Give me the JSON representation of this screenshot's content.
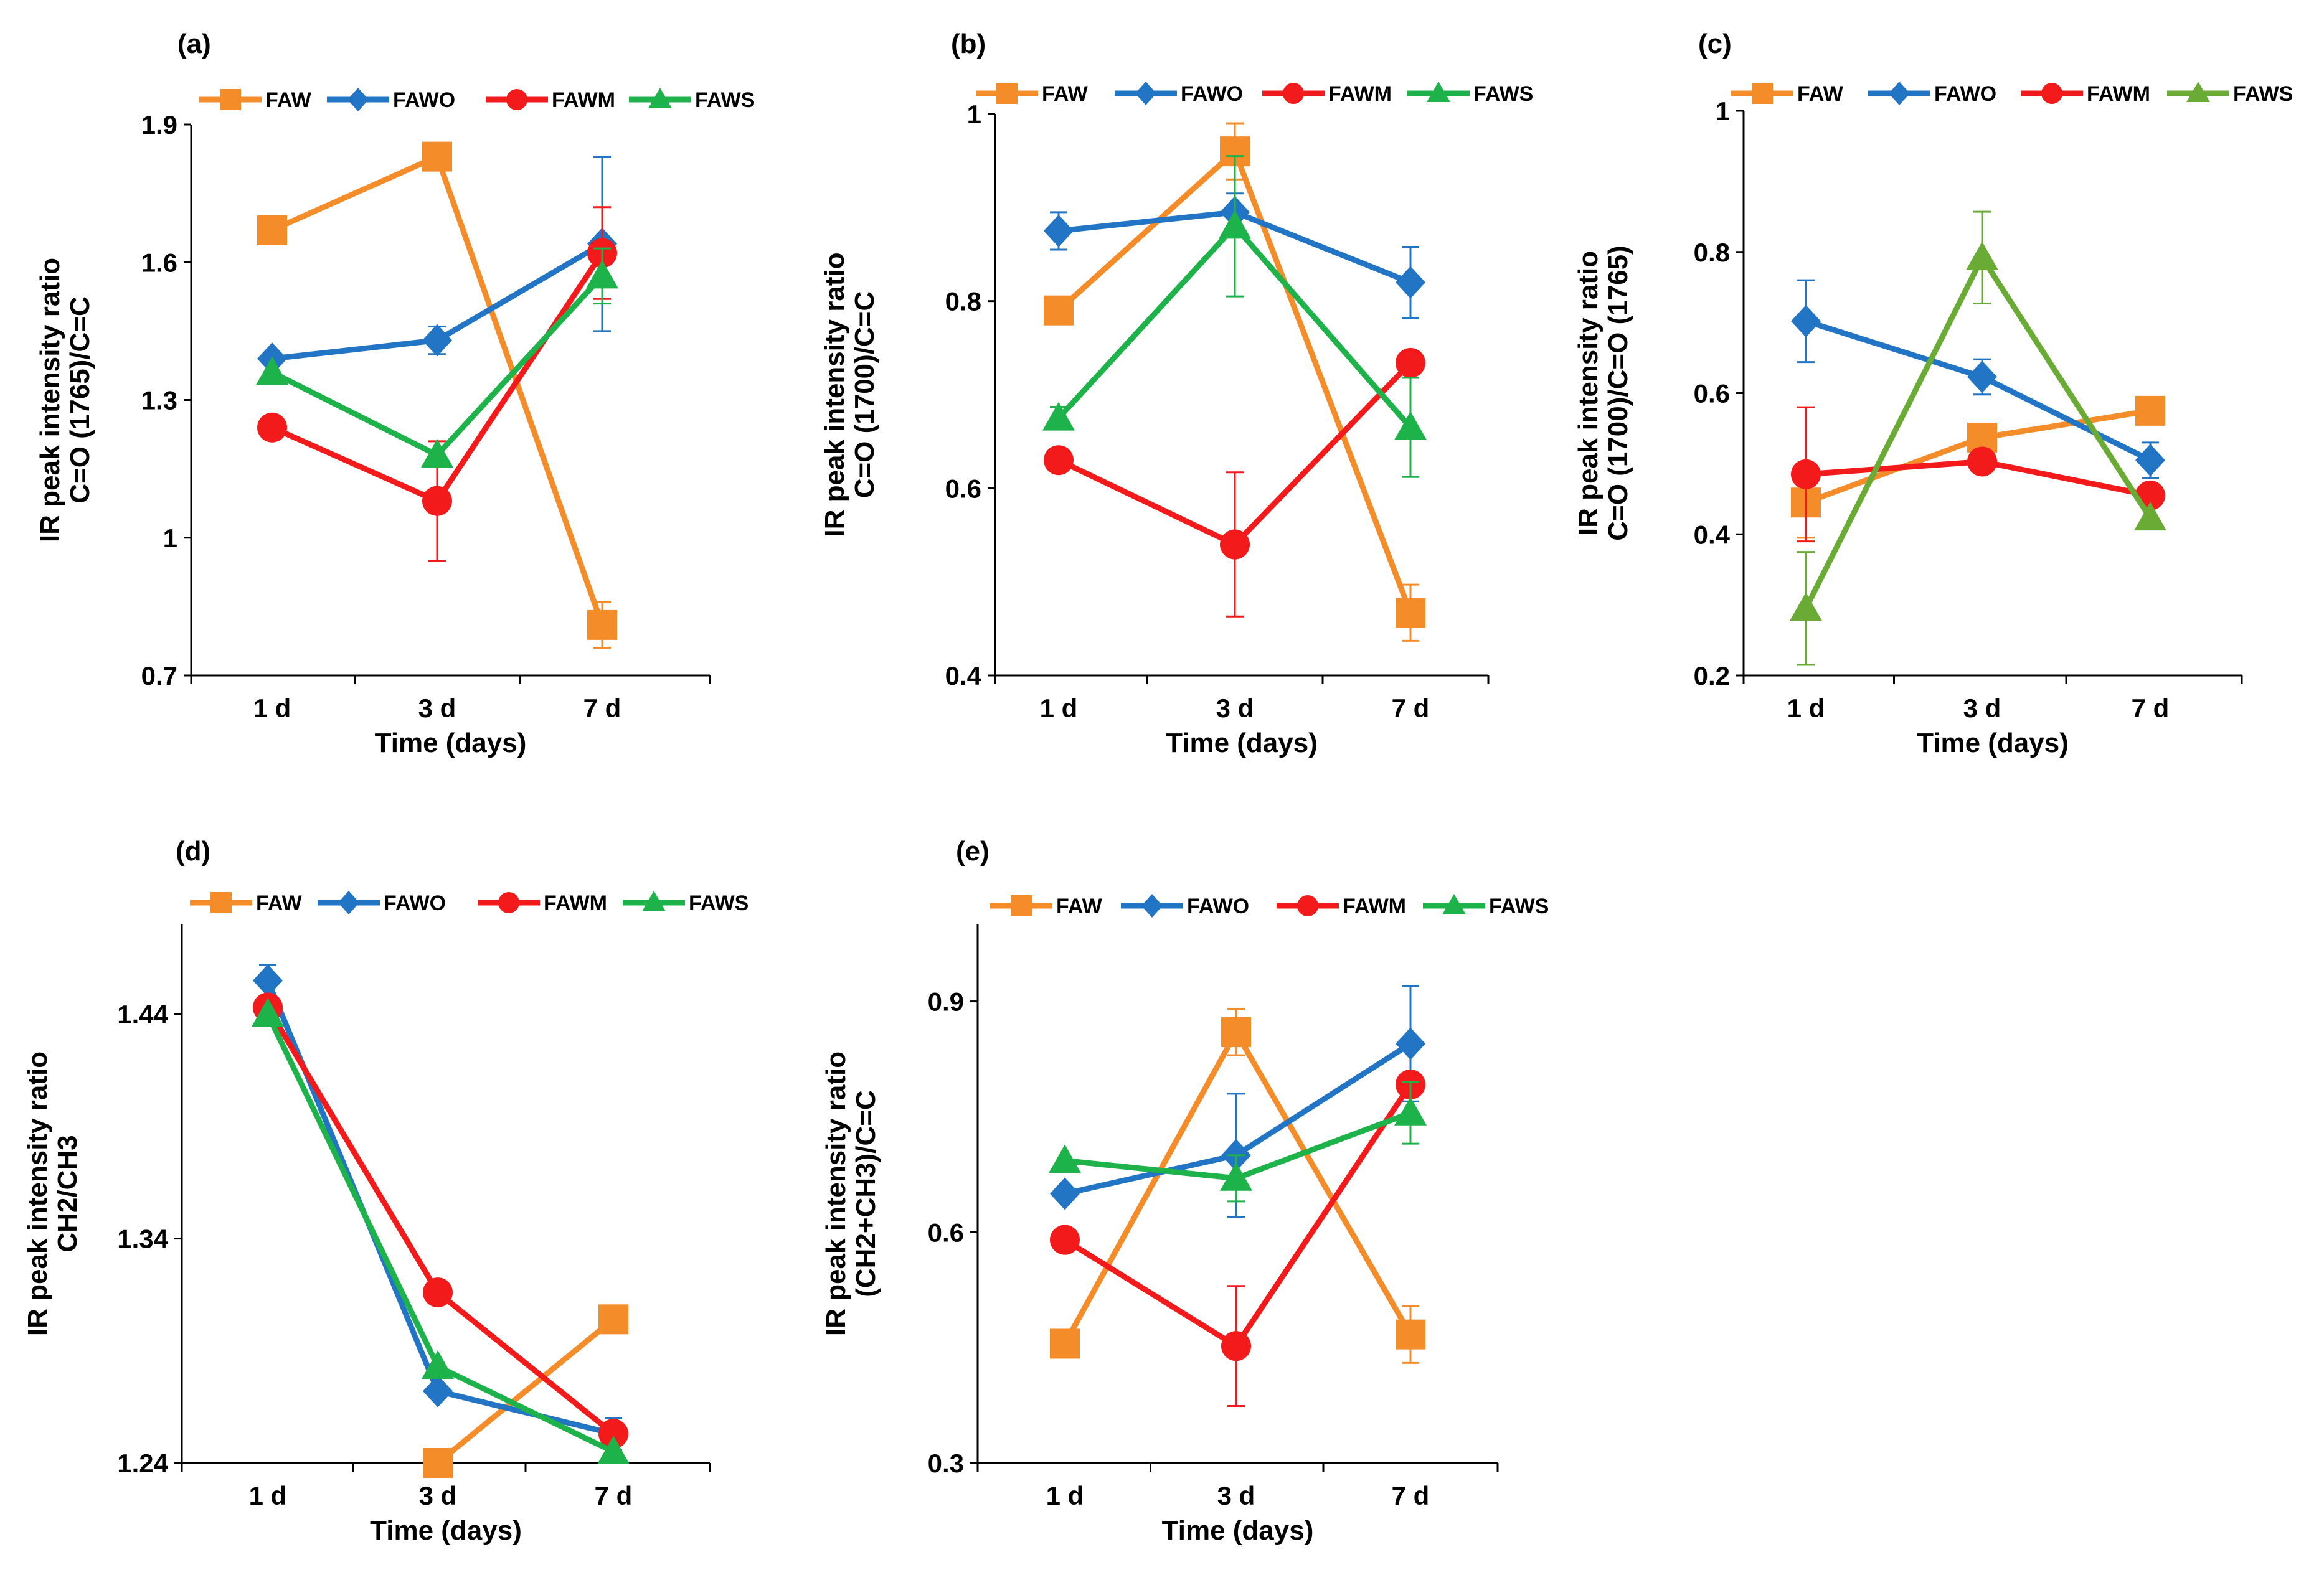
{
  "colors": {
    "FAW": "#F58C2A",
    "FAWO": "#2175C4",
    "FAWM": "#F21A1A",
    "FAWS": "#1DB34A",
    "FAWS_c": "#6AAB35"
  },
  "chart_data": [
    {
      "panel": "(a)",
      "type": "line",
      "categories": [
        "1 d",
        "3 d",
        "7 d"
      ],
      "xlabel": "Time (days)",
      "ylabel": [
        "IR peak intensity ratio",
        "C=O (1765)/C=C"
      ],
      "ylim": [
        0.7,
        1.9
      ],
      "yticks": [
        0.7,
        1,
        1.3,
        1.6,
        1.9
      ],
      "ytick_labels": [
        "0.7",
        "1",
        "1.3",
        "1.6",
        "1.9"
      ],
      "legend": [
        "FAW",
        "FAWO",
        "FAWM",
        "FAWS"
      ],
      "series": [
        {
          "name": "FAW",
          "marker": "square",
          "values": [
            1.67,
            1.83,
            0.81
          ],
          "err": [
            0,
            0,
            0.05
          ]
        },
        {
          "name": "FAWO",
          "marker": "diamond",
          "values": [
            1.39,
            1.43,
            1.64
          ],
          "err": [
            0,
            0.03,
            0.19
          ]
        },
        {
          "name": "FAWM",
          "marker": "circle",
          "values": [
            1.24,
            1.08,
            1.62
          ],
          "err": [
            0,
            0.13,
            0.1
          ]
        },
        {
          "name": "FAWS",
          "marker": "triangle",
          "values": [
            1.36,
            1.18,
            1.57
          ],
          "err": [
            0,
            0,
            0.06
          ]
        }
      ]
    },
    {
      "panel": "(b)",
      "type": "line",
      "categories": [
        "1 d",
        "3 d",
        "7 d"
      ],
      "xlabel": "Time (days)",
      "ylabel": [
        "IR peak intensity ratio",
        "C=O (1700)/C=C"
      ],
      "ylim": [
        0.4,
        1.0
      ],
      "yticks": [
        0.4,
        0.6,
        0.8,
        1.0
      ],
      "ytick_labels": [
        "0.4",
        "0.6",
        "0.8",
        "1"
      ],
      "legend": [
        "FAW",
        "FAWO",
        "FAWM",
        "FAWS"
      ],
      "series": [
        {
          "name": "FAW",
          "marker": "square",
          "values": [
            0.79,
            0.96,
            0.467
          ],
          "err": [
            0,
            0.03,
            0.03
          ]
        },
        {
          "name": "FAWO",
          "marker": "diamond",
          "values": [
            0.875,
            0.895,
            0.82
          ],
          "err": [
            0.02,
            0.02,
            0.038
          ]
        },
        {
          "name": "FAWM",
          "marker": "circle",
          "values": [
            0.63,
            0.54,
            0.734
          ],
          "err": [
            0,
            0.077,
            0
          ]
        },
        {
          "name": "FAWS",
          "marker": "triangle",
          "values": [
            0.675,
            0.88,
            0.665
          ],
          "err": [
            0.012,
            0.075,
            0.053
          ]
        }
      ]
    },
    {
      "panel": "(c)",
      "type": "line",
      "categories": [
        "1 d",
        "3 d",
        "7 d"
      ],
      "xlabel": "Time (days)",
      "ylabel": [
        "IR peak intensity ratio",
        "C=O (1700)/C=O (1765)"
      ],
      "ylim": [
        0.2,
        1.0
      ],
      "yticks": [
        0.2,
        0.4,
        0.6,
        0.8,
        1.0
      ],
      "ytick_labels": [
        "0.2",
        "0.4",
        "0.6",
        "0.8",
        "1"
      ],
      "legend": [
        "FAW",
        "FAWO",
        "FAWM",
        "FAWS"
      ],
      "series": [
        {
          "name": "FAW",
          "marker": "square",
          "values": [
            0.445,
            0.537,
            0.575
          ],
          "err": [
            0.05,
            0,
            0
          ]
        },
        {
          "name": "FAWO",
          "marker": "diamond",
          "values": [
            0.702,
            0.623,
            0.505
          ],
          "err": [
            0.058,
            0.025,
            0.025
          ]
        },
        {
          "name": "FAWM",
          "marker": "circle",
          "values": [
            0.485,
            0.503,
            0.455
          ],
          "err": [
            0.095,
            0,
            0
          ]
        },
        {
          "name": "FAWS",
          "marker": "triangle",
          "values": [
            0.295,
            0.792,
            0.423
          ],
          "err": [
            0.08,
            0.065,
            0
          ]
        }
      ]
    },
    {
      "panel": "(d)",
      "type": "line",
      "categories": [
        "1 d",
        "3 d",
        "7 d"
      ],
      "xlabel": "Time (days)",
      "ylabel": [
        "IR peak intensity ratio",
        "CH2/CH3"
      ],
      "ylim": [
        1.24,
        1.48
      ],
      "yticks": [
        1.24,
        1.34,
        1.44
      ],
      "ytick_labels": [
        "1.24",
        "1.34",
        "1.44"
      ],
      "legend": [
        "FAW",
        "FAWO",
        "FAWM",
        "FAWS"
      ],
      "series": [
        {
          "name": "FAW",
          "marker": "square",
          "values": [
            null,
            1.24,
            1.304
          ],
          "err": [
            0,
            0,
            0
          ]
        },
        {
          "name": "FAWO",
          "marker": "diamond",
          "values": [
            1.455,
            1.272,
            1.253
          ],
          "err": [
            0.007,
            0,
            0.007
          ]
        },
        {
          "name": "FAWM",
          "marker": "circle",
          "values": [
            1.443,
            1.316,
            1.253
          ],
          "err": [
            0,
            0,
            0
          ]
        },
        {
          "name": "FAWS",
          "marker": "triangle",
          "values": [
            1.44,
            1.283,
            1.245
          ],
          "err": [
            0,
            0,
            0
          ]
        }
      ]
    },
    {
      "panel": "(e)",
      "type": "line",
      "categories": [
        "1 d",
        "3 d",
        "7 d"
      ],
      "xlabel": "Time (days)",
      "ylabel": [
        "IR peak intensity ratio",
        "(CH2+CH3)/C=C"
      ],
      "ylim": [
        0.3,
        1.0
      ],
      "yticks": [
        0.3,
        0.6,
        0.9
      ],
      "ytick_labels": [
        "0.3",
        "0.6",
        "0.9"
      ],
      "legend": [
        "FAW",
        "FAWO",
        "FAWM",
        "FAWS"
      ],
      "series": [
        {
          "name": "FAW",
          "marker": "square",
          "values": [
            0.455,
            0.86,
            0.467
          ],
          "err": [
            0,
            0.03,
            0.037
          ]
        },
        {
          "name": "FAWO",
          "marker": "diamond",
          "values": [
            0.65,
            0.7,
            0.845
          ],
          "err": [
            0,
            0.08,
            0.075
          ]
        },
        {
          "name": "FAWM",
          "marker": "circle",
          "values": [
            0.59,
            0.452,
            0.792
          ],
          "err": [
            0,
            0.078,
            0
          ]
        },
        {
          "name": "FAWS",
          "marker": "triangle",
          "values": [
            0.693,
            0.67,
            0.755
          ],
          "err": [
            0,
            0.03,
            0.04
          ]
        }
      ]
    }
  ]
}
